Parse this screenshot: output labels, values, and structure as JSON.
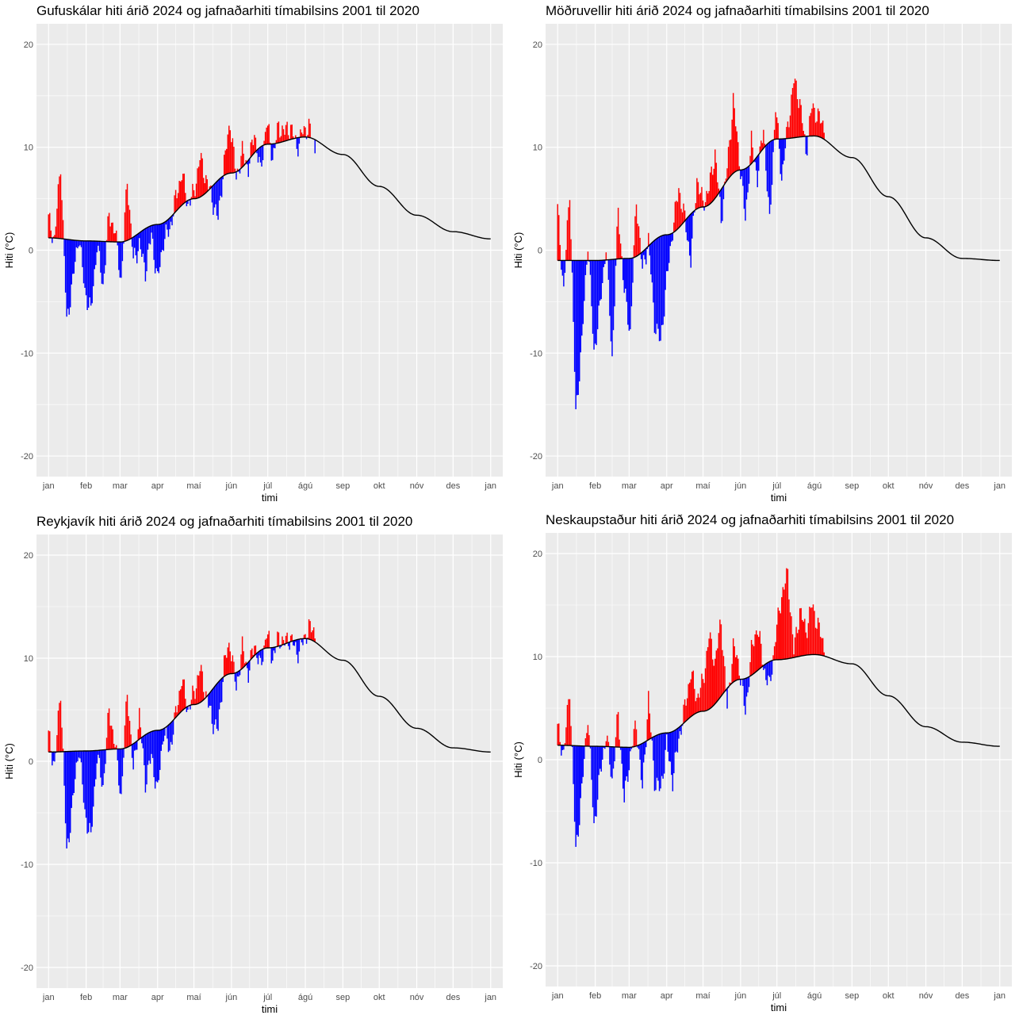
{
  "months": [
    "jan",
    "feb",
    "mar",
    "apr",
    "maí",
    "jún",
    "júl",
    "ágú",
    "sep",
    "okt",
    "nóv",
    "des",
    "jan"
  ],
  "colors": {
    "above": "#ff0000",
    "below": "#0000ff",
    "normal": "#000000",
    "panel_bg": "#ebebeb",
    "grid": "#ffffff"
  },
  "chart_data": [
    {
      "type": "bar",
      "title": "Gufuskálar hiti árið 2024 og jafnaðarhiti tímabilsins 2001 til 2020",
      "xlabel": "timi",
      "ylabel": "Hiti (°C)",
      "ylim": [
        -22,
        22
      ],
      "yticks": [
        -20,
        -10,
        0,
        10,
        20
      ],
      "normal_curve": {
        "day_of_year": [
          0,
          31,
          59,
          90,
          120,
          151,
          181,
          212,
          243,
          273,
          304,
          334,
          365
        ],
        "value": [
          1.2,
          0.9,
          0.8,
          2.5,
          5.0,
          7.5,
          10.3,
          11.0,
          9.3,
          6.2,
          3.4,
          1.8,
          1.1
        ]
      },
      "daily": {
        "day_of_year": [
          0,
          5,
          10,
          15,
          20,
          25,
          30,
          35,
          40,
          45,
          50,
          55,
          60,
          65,
          70,
          75,
          80,
          85,
          90,
          95,
          100,
          105,
          110,
          115,
          120,
          125,
          130,
          135,
          140,
          145,
          150,
          155,
          160,
          165,
          170,
          175,
          180,
          185,
          190,
          195,
          200,
          205,
          210,
          215,
          220
        ],
        "value": [
          3.0,
          1.0,
          8.5,
          -7.0,
          -3.0,
          1.5,
          -4.0,
          -6.0,
          0.5,
          -3.5,
          3.5,
          1.8,
          -3.0,
          7.0,
          -1.0,
          0.5,
          -2.0,
          1.5,
          -3.0,
          1.0,
          2.0,
          5.0,
          7.5,
          4.5,
          5.5,
          9.0,
          7.0,
          5.0,
          3.0,
          8.5,
          12.5,
          7.0,
          9.5,
          8.0,
          11.5,
          7.5,
          12.5,
          9.0,
          12.0,
          11.5,
          12.0,
          10.0,
          11.5,
          12.0,
          10.0
        ]
      }
    },
    {
      "type": "bar",
      "title": "Möðruvellir hiti árið 2024 og jafnaðarhiti tímabilsins 2001 til 2020",
      "xlabel": "timi",
      "ylabel": "Hiti (°C)",
      "ylim": [
        -22,
        22
      ],
      "yticks": [
        -20,
        -10,
        0,
        10,
        20
      ],
      "normal_curve": {
        "day_of_year": [
          0,
          31,
          59,
          90,
          120,
          151,
          181,
          212,
          243,
          273,
          304,
          334,
          365
        ],
        "value": [
          -1.0,
          -1.0,
          -0.8,
          1.5,
          4.2,
          7.8,
          10.8,
          11.1,
          9.0,
          5.2,
          1.2,
          -0.8,
          -1.0
        ]
      },
      "daily": {
        "day_of_year": [
          0,
          5,
          10,
          15,
          20,
          25,
          30,
          35,
          40,
          45,
          50,
          55,
          60,
          65,
          70,
          75,
          80,
          85,
          90,
          95,
          100,
          105,
          110,
          115,
          120,
          125,
          130,
          135,
          140,
          145,
          150,
          155,
          160,
          165,
          170,
          175,
          180,
          185,
          190,
          195,
          200,
          205,
          210,
          215,
          220
        ],
        "value": [
          4.0,
          -4.0,
          6.0,
          -16.0,
          -9.0,
          1.0,
          -10.0,
          -5.5,
          0.5,
          -10.5,
          4.0,
          -4.0,
          -8.0,
          5.0,
          -2.0,
          1.0,
          -7.0,
          -9.0,
          -3.0,
          2.0,
          6.0,
          3.0,
          -1.0,
          7.0,
          4.5,
          6.0,
          9.5,
          3.0,
          8.0,
          14.5,
          9.0,
          3.0,
          10.5,
          7.0,
          12.0,
          2.5,
          14.0,
          7.0,
          12.0,
          16.5,
          14.5,
          9.5,
          14.0,
          13.0,
          12.0
        ]
      }
    },
    {
      "type": "bar",
      "title": "Reykjavík hiti árið 2024 og jafnaðarhiti tímabilsins 2001 til 2020",
      "xlabel": "timi",
      "ylabel": "Hiti (°C)",
      "ylim": [
        -22,
        22
      ],
      "yticks": [
        -20,
        -10,
        0,
        10,
        20
      ],
      "normal_curve": {
        "day_of_year": [
          0,
          31,
          59,
          90,
          120,
          151,
          181,
          212,
          243,
          273,
          304,
          334,
          365
        ],
        "value": [
          0.9,
          1.0,
          1.2,
          3.0,
          5.5,
          8.5,
          11.0,
          11.9,
          9.8,
          6.3,
          3.2,
          1.3,
          0.9
        ]
      },
      "daily": {
        "day_of_year": [
          0,
          5,
          10,
          15,
          20,
          25,
          30,
          35,
          40,
          45,
          50,
          55,
          60,
          65,
          70,
          75,
          80,
          85,
          90,
          95,
          100,
          105,
          110,
          115,
          120,
          125,
          130,
          135,
          140,
          145,
          150,
          155,
          160,
          165,
          170,
          175,
          180,
          185,
          190,
          195,
          200,
          205,
          210,
          215,
          220
        ],
        "value": [
          2.5,
          -0.5,
          7.0,
          -9.0,
          -4.0,
          1.5,
          -5.0,
          -7.5,
          0.5,
          -2.5,
          5.0,
          1.5,
          -3.5,
          7.0,
          -1.0,
          4.5,
          -2.0,
          0.5,
          -3.0,
          3.0,
          1.0,
          4.5,
          8.0,
          5.0,
          6.5,
          9.0,
          6.5,
          4.0,
          3.0,
          9.5,
          11.5,
          7.0,
          11.0,
          8.5,
          11.5,
          9.0,
          12.5,
          10.0,
          12.0,
          11.5,
          12.0,
          10.5,
          11.5,
          13.0,
          12.5
        ]
      }
    },
    {
      "type": "bar",
      "title": "Neskaupstaður hiti árið 2024 og jafnaðarhiti tímabilsins 2001 til 2020",
      "xlabel": "timi",
      "ylabel": "Hiti (°C)",
      "ylim": [
        -22,
        22
      ],
      "yticks": [
        -20,
        -10,
        0,
        10,
        20
      ],
      "normal_curve": {
        "day_of_year": [
          0,
          31,
          59,
          90,
          120,
          151,
          181,
          212,
          243,
          273,
          304,
          334,
          365
        ],
        "value": [
          1.4,
          1.3,
          1.2,
          2.6,
          4.7,
          7.8,
          9.7,
          10.2,
          9.3,
          6.2,
          3.2,
          1.7,
          1.3
        ]
      },
      "daily": {
        "day_of_year": [
          0,
          5,
          10,
          15,
          20,
          25,
          30,
          35,
          40,
          45,
          50,
          55,
          60,
          65,
          70,
          75,
          80,
          85,
          90,
          95,
          100,
          105,
          110,
          115,
          120,
          125,
          130,
          135,
          140,
          145,
          150,
          155,
          160,
          165,
          170,
          175,
          180,
          185,
          190,
          195,
          200,
          205,
          210,
          215,
          220
        ],
        "value": [
          3.0,
          0.5,
          7.0,
          -9.0,
          -3.0,
          4.5,
          -6.5,
          -1.5,
          2.5,
          -2.0,
          4.5,
          -4.0,
          0.5,
          3.5,
          -3.0,
          6.0,
          -2.0,
          -3.0,
          1.5,
          -2.0,
          2.0,
          5.0,
          8.5,
          6.0,
          7.5,
          12.0,
          9.5,
          13.5,
          5.0,
          11.0,
          9.0,
          4.5,
          10.5,
          13.0,
          9.0,
          7.0,
          12.0,
          16.0,
          18.0,
          10.5,
          14.5,
          12.5,
          15.0,
          13.0,
          11.0
        ]
      }
    }
  ]
}
